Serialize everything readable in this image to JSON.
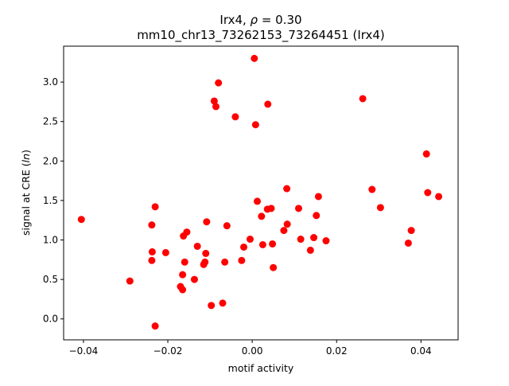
{
  "chart_data": {
    "type": "scatter",
    "title_line1_prefix": "Irx4, ",
    "title_line1_rho": "ρ",
    "title_line1_suffix": " = 0.30",
    "title_line2": "mm10_chr13_73262153_73264451 (Irx4)",
    "xlabel": "motif activity",
    "ylabel_prefix": "signal at CRE (",
    "ylabel_var": "ln",
    "ylabel_suffix": ")",
    "xlim": [
      -0.0447,
      0.0488
    ],
    "ylim": [
      -0.265,
      3.455
    ],
    "xticks": [
      -0.04,
      -0.02,
      0.0,
      0.02,
      0.04
    ],
    "xtick_labels": [
      "−0.04",
      "−0.02",
      "0.00",
      "0.02",
      "0.04"
    ],
    "yticks": [
      0.0,
      0.5,
      1.0,
      1.5,
      2.0,
      2.5,
      3.0
    ],
    "ytick_labels": [
      "0.0",
      "0.5",
      "1.0",
      "1.5",
      "2.0",
      "2.5",
      "3.0"
    ],
    "marker_color": "#ff0000",
    "grid": false,
    "points": [
      {
        "x": -0.0405,
        "y": 1.26
      },
      {
        "x": -0.029,
        "y": 0.48
      },
      {
        "x": -0.0238,
        "y": 1.19
      },
      {
        "x": -0.0237,
        "y": 0.85
      },
      {
        "x": -0.0238,
        "y": 0.74
      },
      {
        "x": -0.023,
        "y": 1.42
      },
      {
        "x": -0.023,
        "y": -0.09
      },
      {
        "x": -0.0205,
        "y": 0.84
      },
      {
        "x": -0.017,
        "y": 0.41
      },
      {
        "x": -0.0165,
        "y": 0.37
      },
      {
        "x": -0.0165,
        "y": 0.56
      },
      {
        "x": -0.0163,
        "y": 1.05
      },
      {
        "x": -0.016,
        "y": 0.72
      },
      {
        "x": -0.0155,
        "y": 1.1
      },
      {
        "x": -0.0137,
        "y": 0.5
      },
      {
        "x": -0.013,
        "y": 0.92
      },
      {
        "x": -0.0115,
        "y": 0.69
      },
      {
        "x": -0.0112,
        "y": 0.72
      },
      {
        "x": -0.011,
        "y": 0.83
      },
      {
        "x": -0.0108,
        "y": 1.23
      },
      {
        "x": -0.0097,
        "y": 0.17
      },
      {
        "x": -0.009,
        "y": 2.76
      },
      {
        "x": -0.0086,
        "y": 2.69
      },
      {
        "x": -0.008,
        "y": 2.99
      },
      {
        "x": -0.007,
        "y": 0.2
      },
      {
        "x": -0.0065,
        "y": 0.72
      },
      {
        "x": -0.006,
        "y": 1.18
      },
      {
        "x": -0.004,
        "y": 2.56
      },
      {
        "x": -0.0025,
        "y": 0.74
      },
      {
        "x": -0.002,
        "y": 0.91
      },
      {
        "x": -0.0005,
        "y": 1.01
      },
      {
        "x": 0.0005,
        "y": 3.3
      },
      {
        "x": 0.0008,
        "y": 2.46
      },
      {
        "x": 0.0012,
        "y": 1.49
      },
      {
        "x": 0.0022,
        "y": 1.3
      },
      {
        "x": 0.0025,
        "y": 0.94
      },
      {
        "x": 0.0036,
        "y": 1.39
      },
      {
        "x": 0.0037,
        "y": 2.72
      },
      {
        "x": 0.0045,
        "y": 1.4
      },
      {
        "x": 0.0048,
        "y": 0.95
      },
      {
        "x": 0.005,
        "y": 0.65
      },
      {
        "x": 0.0075,
        "y": 1.12
      },
      {
        "x": 0.0082,
        "y": 1.65
      },
      {
        "x": 0.0083,
        "y": 1.2
      },
      {
        "x": 0.011,
        "y": 1.4
      },
      {
        "x": 0.0115,
        "y": 1.01
      },
      {
        "x": 0.0138,
        "y": 0.87
      },
      {
        "x": 0.0146,
        "y": 1.03
      },
      {
        "x": 0.0152,
        "y": 1.31
      },
      {
        "x": 0.0157,
        "y": 1.55
      },
      {
        "x": 0.0175,
        "y": 0.99
      },
      {
        "x": 0.0262,
        "y": 2.79
      },
      {
        "x": 0.0284,
        "y": 1.64
      },
      {
        "x": 0.0304,
        "y": 1.41
      },
      {
        "x": 0.037,
        "y": 0.96
      },
      {
        "x": 0.0377,
        "y": 1.12
      },
      {
        "x": 0.0413,
        "y": 2.09
      },
      {
        "x": 0.0416,
        "y": 1.6
      },
      {
        "x": 0.0442,
        "y": 1.55
      }
    ]
  }
}
